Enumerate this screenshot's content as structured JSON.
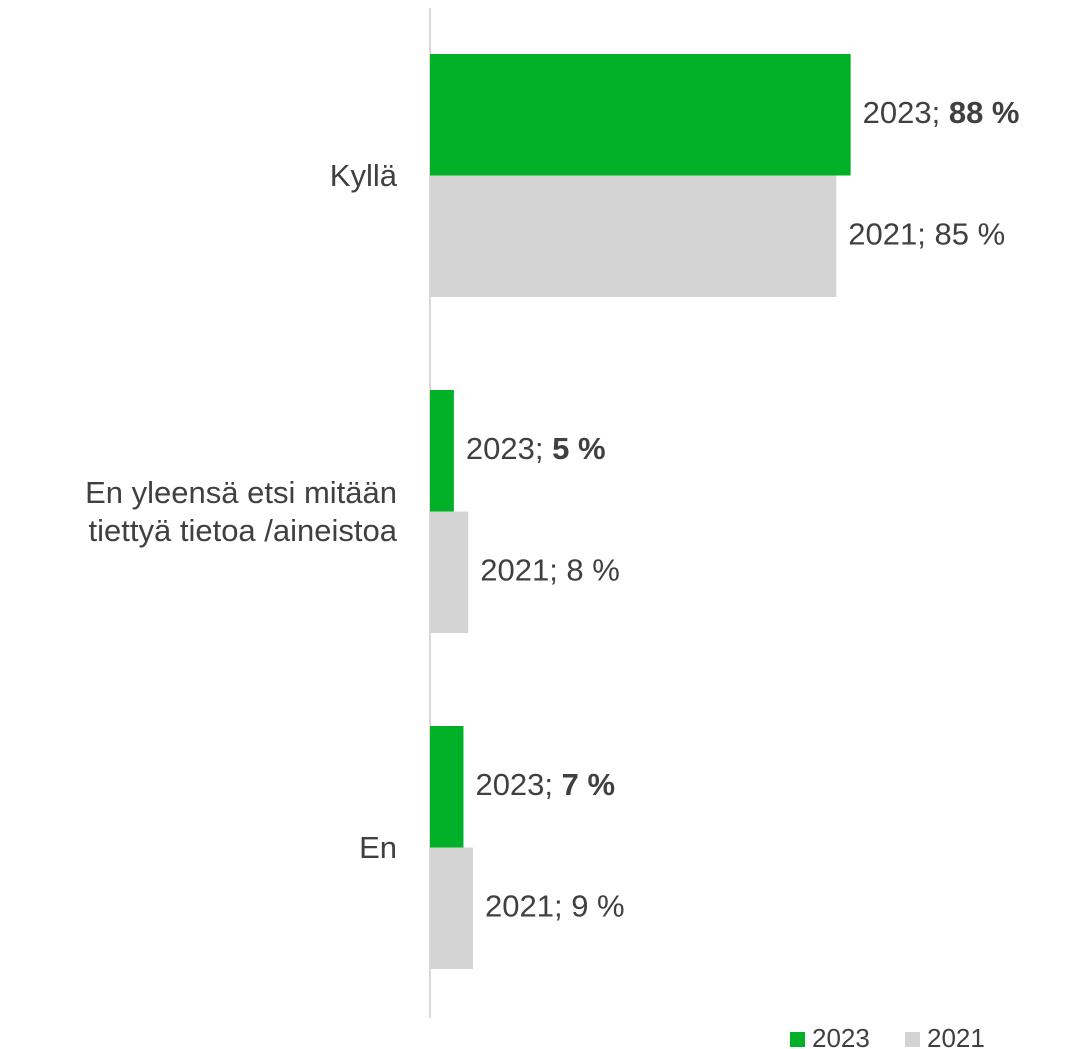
{
  "chart_data": {
    "type": "hbar",
    "categories": [
      "Kyllä",
      "En yleensä etsi mitään tiettyä tietoa /aineistoa",
      "En"
    ],
    "series": [
      {
        "name": "2023",
        "color": "#00b026",
        "values": [
          88,
          5,
          7
        ],
        "value_labels": [
          "2023; 88 %",
          "2023; 5 %",
          "2023; 7 %"
        ],
        "bold_value": true
      },
      {
        "name": "2021",
        "color": "#d4d4d4",
        "values": [
          85,
          8,
          9
        ],
        "value_labels": [
          "2021; 85 %",
          "2021; 8 %",
          "2021; 9 %"
        ],
        "bold_value": false
      }
    ],
    "xlim": [
      0,
      100
    ],
    "legend": "bottom-right"
  }
}
